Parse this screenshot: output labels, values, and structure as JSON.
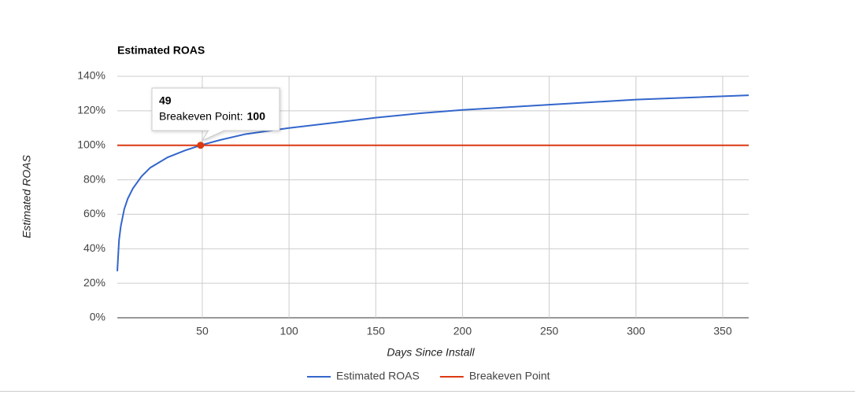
{
  "chart_data": {
    "type": "line",
    "title": "Estimated ROAS",
    "x_label": "Days Since Install",
    "y_label": "Estimated ROAS",
    "xlim": [
      1,
      365
    ],
    "xticks": [
      50,
      100,
      150,
      200,
      250,
      300,
      350
    ],
    "ylim": [
      0,
      140
    ],
    "yticks": [
      {
        "value": 0,
        "label": "0%"
      },
      {
        "value": 20,
        "label": "20%"
      },
      {
        "value": 40,
        "label": "40%"
      },
      {
        "value": 60,
        "label": "60%"
      },
      {
        "value": 80,
        "label": "80%"
      },
      {
        "value": 100,
        "label": "100%"
      },
      {
        "value": 120,
        "label": "120%"
      },
      {
        "value": 140,
        "label": "140%"
      }
    ],
    "grid": true,
    "legend": "bottom",
    "series": [
      {
        "name": "Estimated ROAS",
        "color": "#3366cc",
        "x": [
          1,
          2,
          3,
          5,
          7,
          10,
          15,
          20,
          30,
          40,
          49,
          60,
          75,
          100,
          125,
          150,
          175,
          200,
          250,
          300,
          365
        ],
        "values": [
          27,
          45,
          53,
          63,
          69,
          75,
          82,
          87,
          93,
          97,
          100,
          103,
          106.5,
          110,
          113,
          116,
          118.5,
          120.5,
          123.5,
          126.5,
          129
        ]
      },
      {
        "name": "Breakeven Point",
        "color": "#dc3912",
        "x": [
          1,
          365
        ],
        "values": [
          100,
          100
        ]
      }
    ],
    "tooltip": {
      "x": 49,
      "label": "Breakeven Point:",
      "value": 100
    }
  }
}
